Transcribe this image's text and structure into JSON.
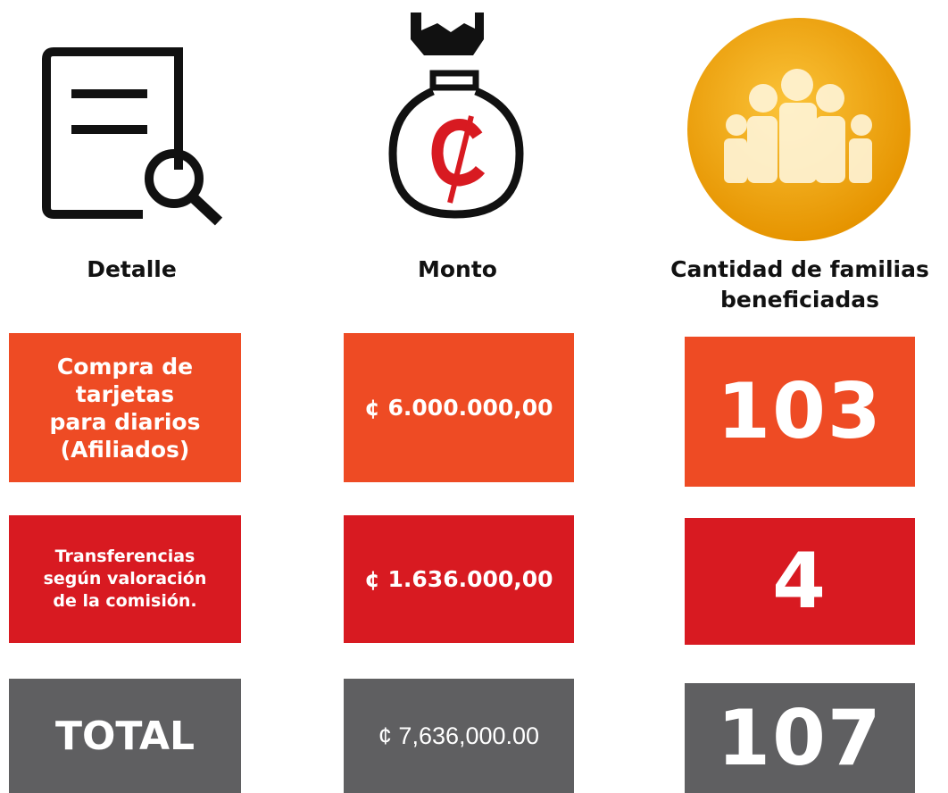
{
  "header": {
    "columns": [
      [
        "Detalle"
      ],
      [
        "Monto"
      ],
      [
        "Cantidad de familias",
        "beneficiadas"
      ]
    ]
  },
  "rows": [
    {
      "detail": [
        "Compra de",
        "tarjetas",
        "para diarios",
        "(Afiliados)"
      ],
      "amount": "¢ 6.000.000,00",
      "families": "103"
    },
    {
      "detail": [
        "Transferencias",
        "según valoración",
        "de la comisión."
      ],
      "amount": "¢ 1.636.000,00",
      "families": "4"
    },
    {
      "detail": [
        "TOTAL"
      ],
      "amount": "¢ 7,636,000.00",
      "families": "107"
    }
  ]
}
